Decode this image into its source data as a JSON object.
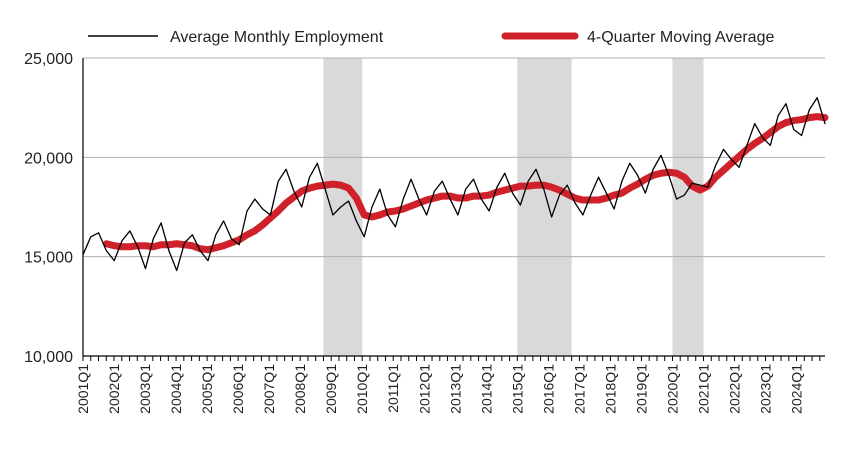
{
  "chart_data": {
    "type": "line",
    "title": "",
    "xlabel": "",
    "ylabel": "",
    "ylim": [
      10000,
      25000
    ],
    "yticks": [
      10000,
      15000,
      20000,
      25000
    ],
    "ytick_labels": [
      "10,000",
      "15,000",
      "20,000",
      "25,000"
    ],
    "grid": "horizontal",
    "legend_position": "top",
    "x_start": "2001Q1",
    "x_end": "2024Q4",
    "x_tick_labels": [
      "2001Q1",
      "2002Q1",
      "2003Q1",
      "2004Q1",
      "2005Q1",
      "2006Q1",
      "2007Q1",
      "2008Q1",
      "2009Q1",
      "2010Q1",
      "2011Q1",
      "2012Q1",
      "2013Q1",
      "2014Q1",
      "2015Q1",
      "2016Q1",
      "2017Q1",
      "2018Q1",
      "2019Q1",
      "2020Q1",
      "2021Q1",
      "2022Q1",
      "2023Q1",
      "2024Q1"
    ],
    "recessions": [
      {
        "start": "2008Q4",
        "end": "2010Q1"
      },
      {
        "start": "2015Q1",
        "end": "2016Q4"
      },
      {
        "start": "2020Q1",
        "end": "2021Q1"
      }
    ],
    "series": [
      {
        "name": "Average Monthly Employment",
        "color": "#000000",
        "values": [
          15100,
          16000,
          16200,
          15300,
          14800,
          15800,
          16300,
          15500,
          14400,
          15900,
          16700,
          15300,
          14300,
          15700,
          16100,
          15300,
          14800,
          16100,
          16800,
          15900,
          15600,
          17300,
          17900,
          17400,
          17100,
          18800,
          19400,
          18300,
          17500,
          19000,
          19700,
          18400,
          17100,
          17500,
          17800,
          16800,
          16000,
          17500,
          18400,
          17100,
          16500,
          17900,
          18900,
          17900,
          17100,
          18300,
          18800,
          17900,
          17100,
          18400,
          18900,
          17900,
          17300,
          18500,
          19200,
          18200,
          17600,
          18800,
          19400,
          18400,
          17000,
          18100,
          18600,
          17700,
          17100,
          18100,
          19000,
          18200,
          17400,
          18800,
          19700,
          19100,
          18200,
          19400,
          20100,
          19100,
          17900,
          18100,
          18700,
          18600,
          18500,
          19600,
          20400,
          19900,
          19500,
          20600,
          21700,
          21000,
          20600,
          22100,
          22700,
          21400,
          21100,
          22400,
          23000,
          21700
        ]
      },
      {
        "name": "4-Quarter Moving Average",
        "color": "#d0202a",
        "values": [
          null,
          null,
          null,
          15650,
          15550,
          15500,
          15500,
          15550,
          15550,
          15500,
          15600,
          15600,
          15650,
          15600,
          15550,
          15400,
          15350,
          15450,
          15550,
          15700,
          15850,
          16100,
          16300,
          16600,
          16950,
          17300,
          17700,
          18000,
          18300,
          18450,
          18550,
          18600,
          18650,
          18600,
          18450,
          17950,
          17100,
          17000,
          17100,
          17250,
          17300,
          17400,
          17550,
          17700,
          17850,
          17950,
          18050,
          18050,
          17950,
          17950,
          18050,
          18050,
          18100,
          18250,
          18350,
          18450,
          18550,
          18550,
          18600,
          18600,
          18500,
          18350,
          18150,
          17950,
          17850,
          17850,
          17850,
          17950,
          18100,
          18200,
          18450,
          18650,
          18900,
          19100,
          19200,
          19250,
          19200,
          19000,
          18550,
          18350,
          18550,
          19000,
          19350,
          19700,
          20050,
          20400,
          20700,
          20950,
          21250,
          21550,
          21750,
          21850,
          21900,
          22000,
          22050,
          22000
        ]
      }
    ]
  }
}
